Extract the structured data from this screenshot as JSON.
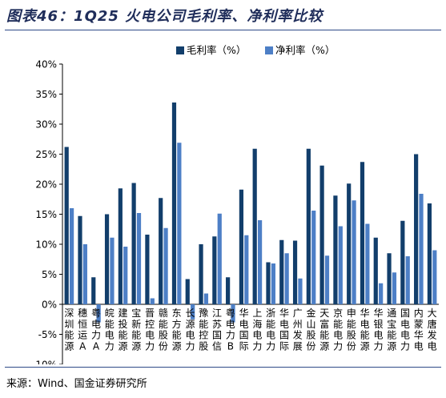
{
  "header": {
    "title": "图表46：1Q25 火电公司毛利率、净利率比较"
  },
  "footer": {
    "source": "来源：Wind、国金证券研究所"
  },
  "chart_data": {
    "type": "bar",
    "categories": [
      "深圳能源",
      "穗恒运A",
      "粤电力A",
      "皖能电力",
      "建投能源",
      "宝新能源",
      "晋控电力",
      "赣能股份",
      "东方能源",
      "长源电力",
      "豫能控股",
      "江苏国信",
      "粤电力B",
      "华电国际",
      "上海电力",
      "浙能电力",
      "华电国际",
      "广州发展",
      "金山股份",
      "天富能源",
      "京能电力",
      "申能股份",
      "华电能源",
      "华银电力",
      "通宝能源",
      "国电电力",
      "内蒙华电",
      "大唐发电"
    ],
    "series": [
      {
        "name": "毛利率（%）",
        "color": "#123e6b",
        "values": [
          26.2,
          14.7,
          4.5,
          15.0,
          19.3,
          20.2,
          11.6,
          17.7,
          33.6,
          4.2,
          10.0,
          11.3,
          4.5,
          19.1,
          25.9,
          7.0,
          10.7,
          10.6,
          25.9,
          23.1,
          18.1,
          20.1,
          23.7,
          11.1,
          8.5,
          13.9,
          25.0,
          16.8
        ]
      },
      {
        "name": "净利率（%）",
        "color": "#4d7fc6",
        "values": [
          16.0,
          10.0,
          -3.0,
          11.1,
          9.6,
          15.2,
          1.0,
          12.7,
          26.9,
          -2.5,
          1.8,
          15.1,
          -3.0,
          11.5,
          14.0,
          6.8,
          8.5,
          4.3,
          15.6,
          8.1,
          13.0,
          17.3,
          13.4,
          3.5,
          5.3,
          8.0,
          18.4,
          9.0
        ]
      }
    ],
    "yticks": [
      "40%",
      "35%",
      "30%",
      "25%",
      "20%",
      "15%",
      "10%",
      "5%",
      "0%",
      "-5%",
      "-10%"
    ],
    "ylim": [
      -10,
      40
    ],
    "legend": "top-center"
  }
}
